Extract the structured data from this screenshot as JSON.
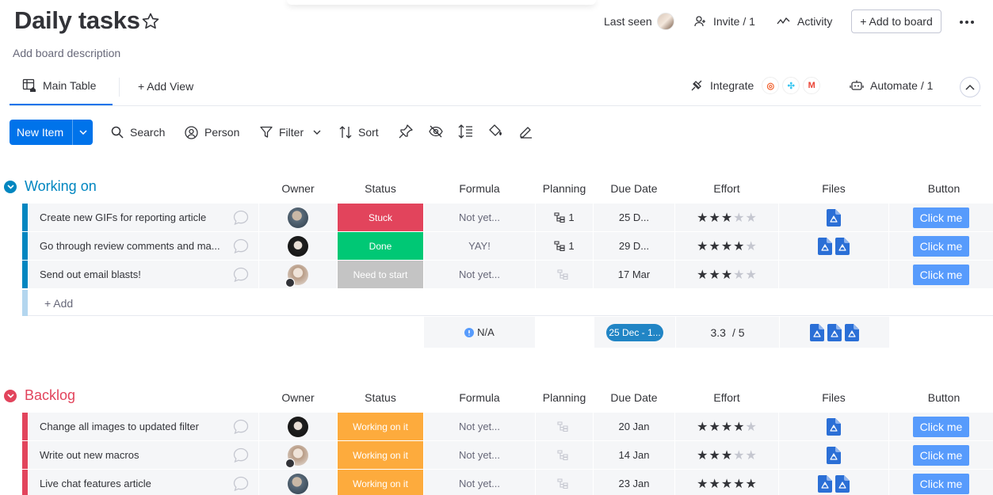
{
  "board": {
    "title": "Daily tasks",
    "description": "Add board description"
  },
  "header": {
    "last_seen": "Last seen",
    "invite": "Invite / 1",
    "activity": "Activity",
    "add_to_board": "+ Add to board"
  },
  "tabs": {
    "main_table": "Main Table",
    "add_view": "+ Add View",
    "integrate": "Integrate",
    "automate": "Automate / 1"
  },
  "toolbar": {
    "new_item": "New Item",
    "search": "Search",
    "person": "Person",
    "filter": "Filter",
    "sort": "Sort"
  },
  "columns": {
    "owner": "Owner",
    "status": "Status",
    "formula": "Formula",
    "planning": "Planning",
    "due_date": "Due Date",
    "effort": "Effort",
    "files": "Files",
    "button": "Button"
  },
  "colors": {
    "working_on": "#0086c0",
    "backlog": "#e2445c",
    "stuck": "#e2445c",
    "done": "#00c875",
    "need_to_start": "#c4c4c4",
    "working_on_it": "#fdab3d",
    "button": "#579bfc",
    "primary": "#0073ea"
  },
  "groups": [
    {
      "title": "Working on",
      "color": "#0086c0",
      "rows": [
        {
          "name": "Create new GIFs for reporting article",
          "status": "Stuck",
          "status_color": "#e2445c",
          "formula": "Not yet...",
          "planning": "1",
          "due": "25 D...",
          "effort": 3,
          "files": 1,
          "button": "Click me",
          "owner": "a"
        },
        {
          "name": "Go through review comments and ma...",
          "status": "Done",
          "status_color": "#00c875",
          "formula": "YAY!",
          "planning": "1",
          "due": "29 D...",
          "effort": 4,
          "files": 2,
          "button": "Click me",
          "owner": "b"
        },
        {
          "name": "Send out email blasts!",
          "status": "Need to start",
          "status_color": "#c4c4c4",
          "formula": "Not yet...",
          "planning": "",
          "due": "17 Mar",
          "effort": 3,
          "files": 0,
          "button": "Click me",
          "owner": "c"
        }
      ],
      "add_label": "+ Add",
      "summary": {
        "formula": "N/A",
        "date": "25 Dec - 1...",
        "effort": "3.3",
        "effort_max": "/ 5"
      }
    },
    {
      "title": "Backlog",
      "color": "#e2445c",
      "rows": [
        {
          "name": "Change all images to updated filter",
          "status": "Working on it",
          "status_color": "#fdab3d",
          "formula": "Not yet...",
          "planning": "",
          "due": "20 Jan",
          "effort": 4,
          "files": 1,
          "button": "Click me",
          "owner": "b"
        },
        {
          "name": "Write out new macros",
          "status": "Working on it",
          "status_color": "#fdab3d",
          "formula": "Not yet...",
          "planning": "",
          "due": "14 Jan",
          "effort": 3,
          "files": 1,
          "button": "Click me",
          "owner": "c"
        },
        {
          "name": "Live chat features article",
          "status": "Working on it",
          "status_color": "#fdab3d",
          "formula": "Not yet...",
          "planning": "",
          "due": "23 Jan",
          "effort": 5,
          "files": 2,
          "button": "Click me",
          "owner": "a"
        }
      ]
    }
  ]
}
